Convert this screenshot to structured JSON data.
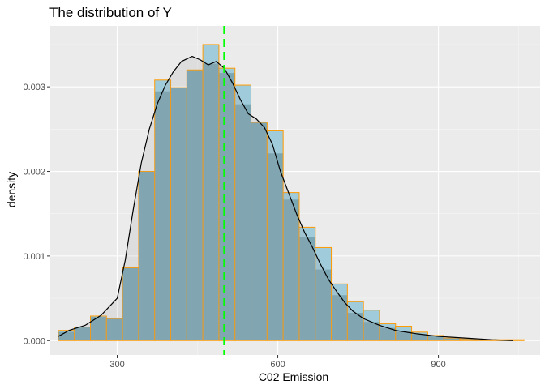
{
  "chart_data": {
    "type": "histogram",
    "title": "The distribution of Y",
    "xlabel": "C02 Emission",
    "ylabel": "density",
    "xlim": [
      175,
      1090
    ],
    "ylim": [
      -0.00017,
      0.00372
    ],
    "xticks": [
      300,
      600,
      900
    ],
    "xtick_labels": [
      "300",
      "600",
      "900"
    ],
    "yticks": [
      0.0,
      0.001,
      0.002,
      0.003
    ],
    "ytick_labels": [
      "0.000",
      "0.001",
      "0.002",
      "0.003"
    ],
    "bin_width": 30,
    "bins": [
      {
        "start": 190,
        "density": 0.00012
      },
      {
        "start": 220,
        "density": 0.00016
      },
      {
        "start": 250,
        "density": 0.00029
      },
      {
        "start": 280,
        "density": 0.00026
      },
      {
        "start": 310,
        "density": 0.00086
      },
      {
        "start": 340,
        "density": 0.002
      },
      {
        "start": 370,
        "density": 0.00308
      },
      {
        "start": 400,
        "density": 0.00299
      },
      {
        "start": 430,
        "density": 0.0032
      },
      {
        "start": 460,
        "density": 0.0035
      },
      {
        "start": 490,
        "density": 0.00322
      },
      {
        "start": 520,
        "density": 0.00302
      },
      {
        "start": 550,
        "density": 0.00258
      },
      {
        "start": 580,
        "density": 0.00248
      },
      {
        "start": 610,
        "density": 0.00175
      },
      {
        "start": 640,
        "density": 0.00134
      },
      {
        "start": 670,
        "density": 0.0011
      },
      {
        "start": 700,
        "density": 0.00067
      },
      {
        "start": 730,
        "density": 0.00046
      },
      {
        "start": 760,
        "density": 0.00036
      },
      {
        "start": 790,
        "density": 0.0002
      },
      {
        "start": 820,
        "density": 0.00017
      },
      {
        "start": 850,
        "density": 0.0001
      },
      {
        "start": 880,
        "density": 6e-05
      },
      {
        "start": 910,
        "density": 3e-05
      },
      {
        "start": 940,
        "density": 2e-05
      },
      {
        "start": 970,
        "density": 1e-05
      },
      {
        "start": 1000,
        "density": 1e-05
      },
      {
        "start": 1030,
        "density": 1e-05
      }
    ],
    "density_curve": {
      "x": [
        190,
        210,
        240,
        270,
        300,
        315,
        330,
        345,
        360,
        375,
        390,
        405,
        420,
        440,
        455,
        470,
        485,
        500,
        515,
        530,
        545,
        560,
        575,
        590,
        605,
        620,
        635,
        650,
        665,
        680,
        695,
        710,
        725,
        740,
        760,
        790,
        820,
        860,
        900,
        950,
        1000,
        1040
      ],
      "y": [
        5e-05,
        0.00012,
        0.00018,
        0.0003,
        0.0005,
        0.00095,
        0.00155,
        0.0021,
        0.0025,
        0.0028,
        0.00302,
        0.00318,
        0.0033,
        0.00336,
        0.00332,
        0.00326,
        0.0033,
        0.00322,
        0.00305,
        0.00285,
        0.00268,
        0.00262,
        0.00252,
        0.00232,
        0.002,
        0.00175,
        0.0015,
        0.00128,
        0.0011,
        0.0009,
        0.00072,
        0.00058,
        0.00045,
        0.00035,
        0.00026,
        0.00018,
        0.00012,
        8e-05,
        5e-05,
        3e-05,
        1e-05,
        0.0
      ]
    },
    "vline": {
      "x": 500,
      "style": "dashed",
      "color": "#00ff00"
    },
    "colors": {
      "panel": "#ebebeb",
      "grid_major": "#ffffff",
      "grid_minor": "#f5f5f5",
      "bar_fill": "#7ba7b5",
      "bar_fill_upper": "#9fcbdb",
      "bar_stroke": "#ff9a00",
      "curve": "#000000",
      "curve_fill": "#9f9f9f",
      "vline": "#00ff00"
    },
    "grid": true,
    "legend": "none"
  }
}
